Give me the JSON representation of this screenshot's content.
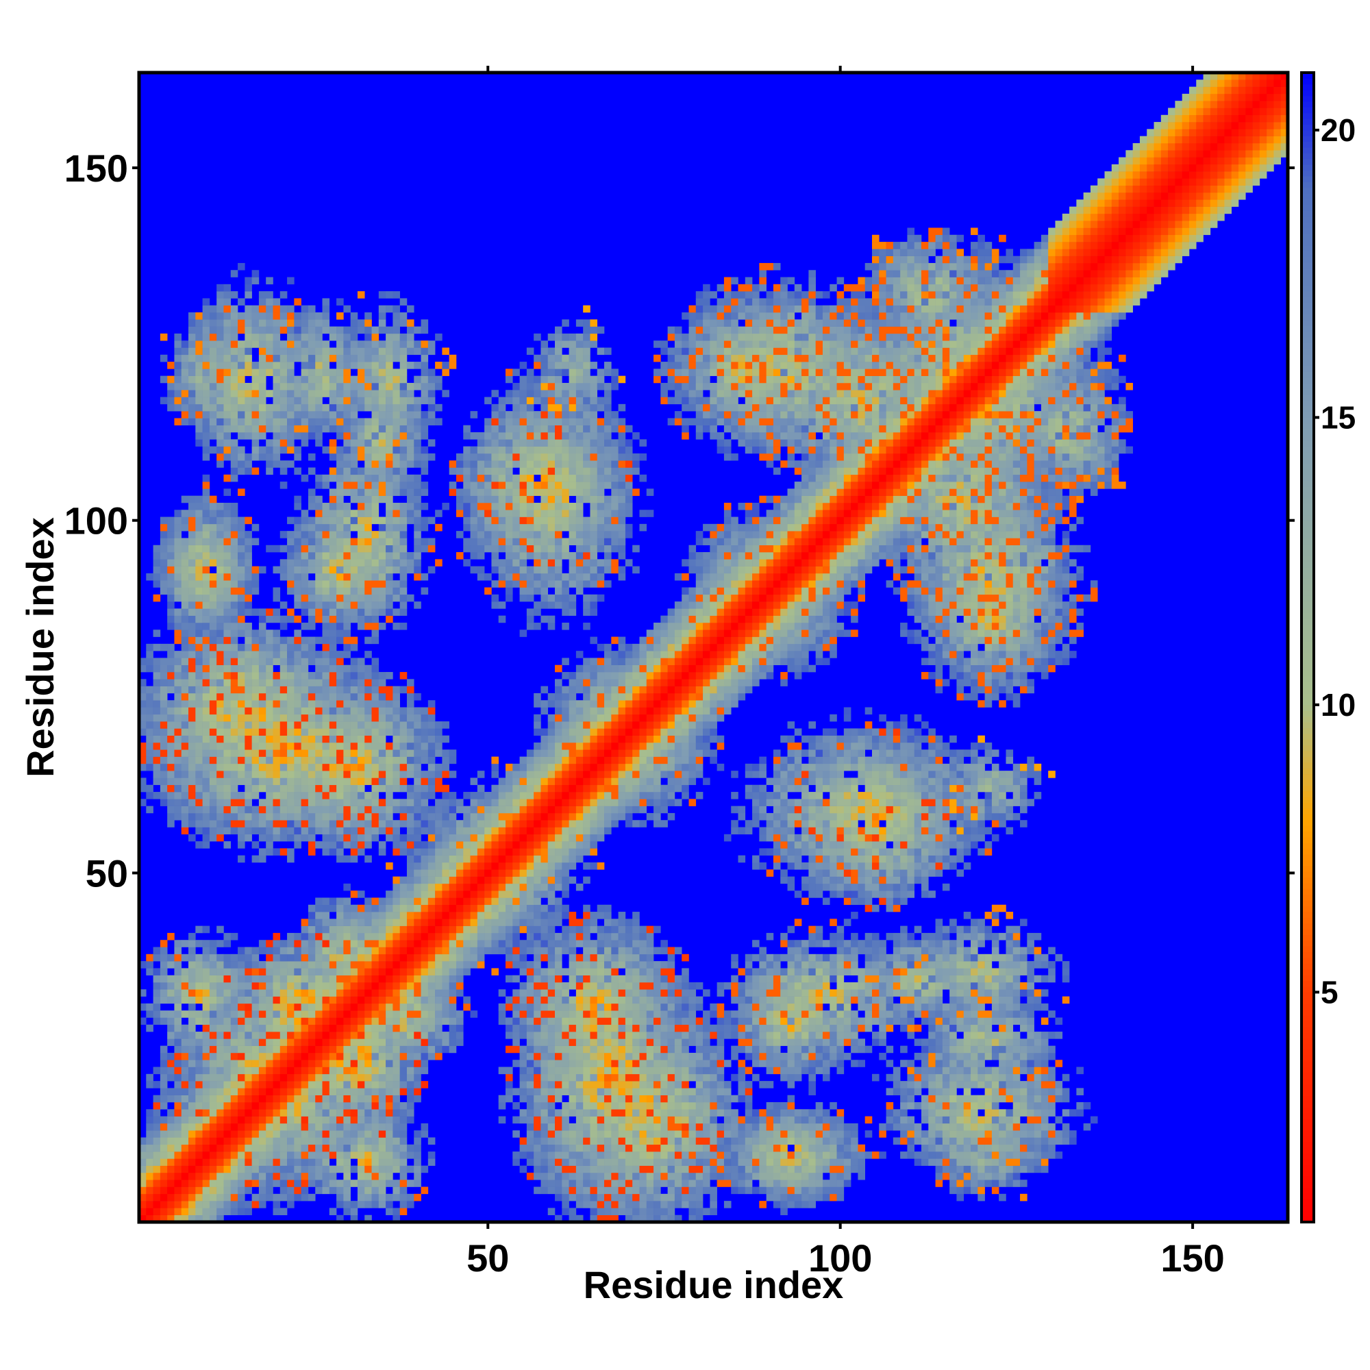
{
  "chart_data": {
    "type": "heatmap",
    "title": "",
    "xlabel": "Residue index",
    "ylabel": "Residue index",
    "xlim": [
      1,
      163
    ],
    "ylim": [
      1,
      163
    ],
    "x_ticks": [
      50,
      100,
      150
    ],
    "y_ticks": [
      50,
      100,
      150
    ],
    "colorbar": {
      "range": [
        1,
        21
      ],
      "ticks": [
        5,
        10,
        15,
        20
      ],
      "stops": [
        {
          "value": 1,
          "color": "#ff0000"
        },
        {
          "value": 5,
          "color": "#ff3c00"
        },
        {
          "value": 8,
          "color": "#ffa500"
        },
        {
          "value": 10,
          "color": "#a9bf8c"
        },
        {
          "value": 15,
          "color": "#7f9cb4"
        },
        {
          "value": 19,
          "color": "#4e6fc0"
        },
        {
          "value": 21,
          "color": "#0000ff"
        }
      ]
    },
    "background_color": "#0000ff",
    "description_of_values": "pairwise residue distance map; near-diagonal values lowest",
    "blocks": [
      {
        "x": [
          2,
          13
        ],
        "y": [
          1,
          15
        ],
        "min": 6
      },
      {
        "x": [
          8,
          28
        ],
        "y": [
          5,
          35
        ],
        "min": 5
      },
      {
        "x": [
          24,
          38
        ],
        "y": [
          15,
          32
        ],
        "min": 4
      },
      {
        "x": [
          33,
          43
        ],
        "y": [
          25,
          40
        ],
        "min": 6
      },
      {
        "x": [
          25,
          33
        ],
        "y": [
          33,
          45
        ],
        "min": 6
      },
      {
        "x": [
          3,
          15
        ],
        "y": [
          25,
          40
        ],
        "min": 6
      },
      {
        "x": [
          38,
          63
        ],
        "y": [
          40,
          58
        ],
        "min": 7
      },
      {
        "x": [
          55,
          80
        ],
        "y": [
          2,
          40
        ],
        "min": 5
      },
      {
        "x": [
          73,
          81
        ],
        "y": [
          10,
          20
        ],
        "min": 6
      },
      {
        "x": [
          85,
          102
        ],
        "y": [
          5,
          15
        ],
        "min": 6
      },
      {
        "x": [
          85,
          110
        ],
        "y": [
          25,
          40
        ],
        "min": 6
      },
      {
        "x": [
          107,
          133
        ],
        "y": [
          8,
          25
        ],
        "min": 6
      },
      {
        "x": [
          110,
          130
        ],
        "y": [
          30,
          42
        ],
        "min": 7
      },
      {
        "x": [
          87,
          120
        ],
        "y": [
          48,
          70
        ],
        "min": 6
      },
      {
        "x": [
          58,
          80
        ],
        "y": [
          60,
          80
        ],
        "min": 6
      },
      {
        "x": [
          1,
          30
        ],
        "y": [
          60,
          85
        ],
        "min": 5
      },
      {
        "x": [
          20,
          42
        ],
        "y": [
          55,
          75
        ],
        "min": 5
      },
      {
        "x": [
          5,
          15
        ],
        "y": [
          85,
          100
        ],
        "min": 6
      },
      {
        "x": [
          22,
          36
        ],
        "y": [
          86,
          100
        ],
        "min": 6
      },
      {
        "x": [
          47,
          68
        ],
        "y": [
          95,
          115
        ],
        "min": 5
      },
      {
        "x": [
          6,
          16
        ],
        "y": [
          113,
          128
        ],
        "min": 7
      },
      {
        "x": [
          20,
          32
        ],
        "y": [
          112,
          130
        ],
        "min": 7
      },
      {
        "x": [
          30,
          40
        ],
        "y": [
          103,
          120
        ],
        "min": 7
      },
      {
        "x": [
          57,
          67
        ],
        "y": [
          115,
          127
        ],
        "min": 8
      },
      {
        "x": [
          76,
          98
        ],
        "y": [
          113,
          130
        ],
        "min": 6
      },
      {
        "x": [
          90,
          116
        ],
        "y": [
          105,
          130
        ],
        "min": 6
      },
      {
        "x": [
          80,
          100
        ],
        "y": [
          80,
          100
        ],
        "min": 6
      },
      {
        "x": [
          110,
          133
        ],
        "y": [
          78,
          106
        ],
        "min": 6
      },
      {
        "x": [
          100,
          138
        ],
        "y": [
          100,
          135
        ],
        "min": 6
      },
      {
        "x": [
          105,
          120
        ],
        "y": [
          125,
          140
        ],
        "min": 7
      }
    ]
  },
  "colors": {
    "axis": "#000000",
    "background": "#ffffff"
  }
}
